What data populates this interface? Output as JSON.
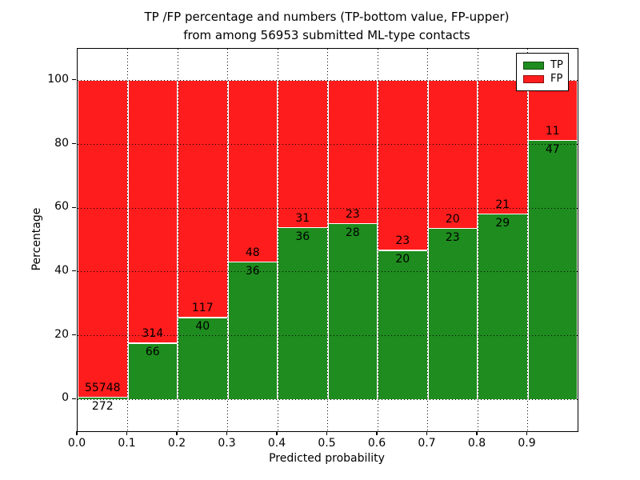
{
  "figure": {
    "title_line1": "TP /FP percentage and numbers (TP-bottom value, FP-upper)",
    "title_line2": "from among 56953 submitted ML-type contacts",
    "xlabel": "Predicted probability",
    "ylabel": "Percentage"
  },
  "legend": {
    "position": "upper right",
    "items": [
      {
        "label": "TP",
        "color": "#1e8c1e"
      },
      {
        "label": "FP",
        "color": "#ff1c1c"
      }
    ]
  },
  "chart_data": {
    "type": "bar",
    "stacked": true,
    "title": "TP /FP percentage and numbers (TP-bottom value, FP-upper) from among 56953 submitted ML-type contacts",
    "xlabel": "Predicted probability",
    "ylabel": "Percentage",
    "total_contacts": 56953,
    "grid": true,
    "legend_position": "upper right",
    "xlim": [
      0.0,
      1.0
    ],
    "ylim": [
      -10,
      110
    ],
    "x_ticks": [
      "0.0",
      "0.1",
      "0.2",
      "0.3",
      "0.4",
      "0.5",
      "0.6",
      "0.7",
      "0.8",
      "0.9"
    ],
    "y_ticks": [
      0,
      20,
      40,
      60,
      80,
      100
    ],
    "series": [
      {
        "name": "TP",
        "color": "#1e8c1e"
      },
      {
        "name": "FP",
        "color": "#ff1c1c"
      }
    ],
    "bins": [
      {
        "range": [
          0.0,
          0.1
        ],
        "tp_count": 272,
        "fp_count": 55748,
        "tp_pct": 0.49,
        "fp_pct": 99.51
      },
      {
        "range": [
          0.1,
          0.2
        ],
        "tp_count": 66,
        "fp_count": 314,
        "tp_pct": 17.37,
        "fp_pct": 82.63
      },
      {
        "range": [
          0.2,
          0.3
        ],
        "tp_count": 40,
        "fp_count": 117,
        "tp_pct": 25.48,
        "fp_pct": 74.52
      },
      {
        "range": [
          0.3,
          0.4
        ],
        "tp_count": 36,
        "fp_count": 48,
        "tp_pct": 42.86,
        "fp_pct": 57.14
      },
      {
        "range": [
          0.4,
          0.5
        ],
        "tp_count": 36,
        "fp_count": 31,
        "tp_pct": 53.73,
        "fp_pct": 46.27
      },
      {
        "range": [
          0.5,
          0.6
        ],
        "tp_count": 28,
        "fp_count": 23,
        "tp_pct": 54.9,
        "fp_pct": 45.1
      },
      {
        "range": [
          0.6,
          0.7
        ],
        "tp_count": 20,
        "fp_count": 23,
        "tp_pct": 46.51,
        "fp_pct": 53.49
      },
      {
        "range": [
          0.7,
          0.8
        ],
        "tp_count": 23,
        "fp_count": 20,
        "tp_pct": 53.49,
        "fp_pct": 46.51
      },
      {
        "range": [
          0.8,
          0.9
        ],
        "tp_count": 29,
        "fp_count": 21,
        "tp_pct": 58.0,
        "fp_pct": 42.0
      },
      {
        "range": [
          0.9,
          1.0
        ],
        "tp_count": 47,
        "fp_count": 11,
        "tp_pct": 81.03,
        "fp_pct": 18.97
      }
    ]
  }
}
